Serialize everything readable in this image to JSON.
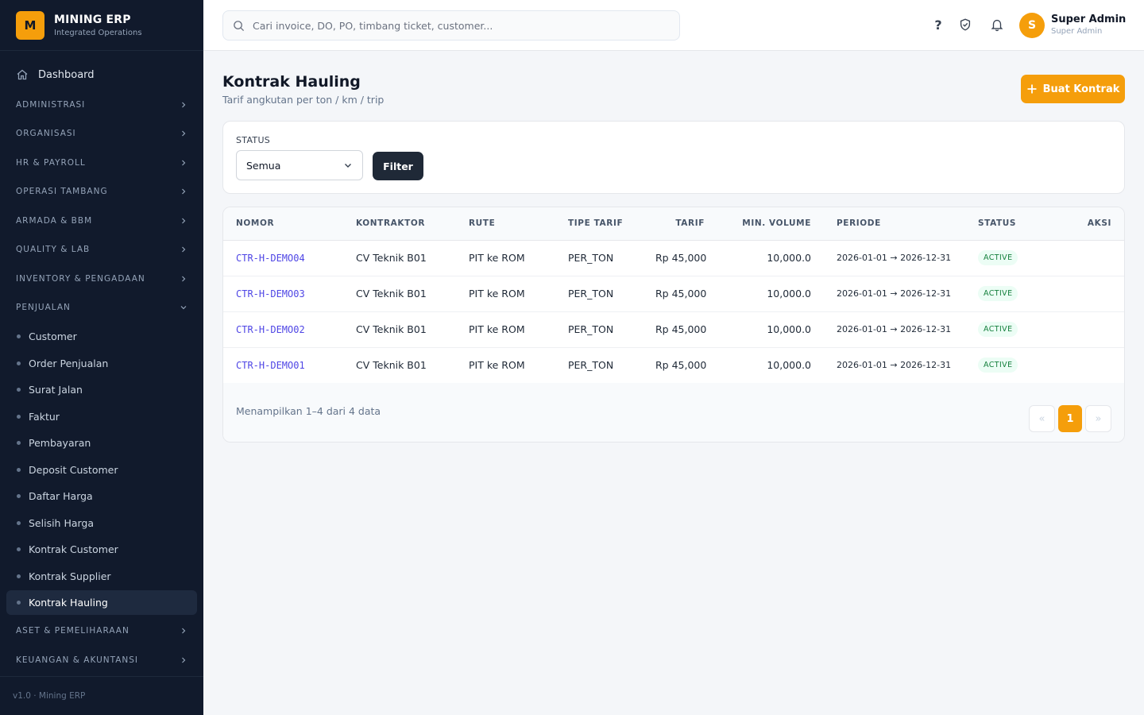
{
  "brand": {
    "logo_letter": "M",
    "name": "MINING ERP",
    "subtitle": "Integrated Operations"
  },
  "sidebar": {
    "dashboard": "Dashboard",
    "sections": [
      {
        "label": "ADMINISTRASI",
        "expanded": false
      },
      {
        "label": "ORGANISASI",
        "expanded": false
      },
      {
        "label": "HR & PAYROLL",
        "expanded": false
      },
      {
        "label": "OPERASI TAMBANG",
        "expanded": false
      },
      {
        "label": "ARMADA & BBM",
        "expanded": false
      },
      {
        "label": "QUALITY & LAB",
        "expanded": false
      },
      {
        "label": "INVENTORY & PENGADAAN",
        "expanded": false
      },
      {
        "label": "PENJUALAN",
        "expanded": true
      },
      {
        "label": "ASET & PEMELIHARAAN",
        "expanded": false
      },
      {
        "label": "KEUANGAN & AKUNTANSI",
        "expanded": false
      }
    ],
    "penjualan_items": [
      "Customer",
      "Order Penjualan",
      "Surat Jalan",
      "Faktur",
      "Pembayaran",
      "Deposit Customer",
      "Daftar Harga",
      "Selisih Harga",
      "Kontrak Customer",
      "Kontrak Supplier",
      "Kontrak Hauling"
    ],
    "active_item": "Kontrak Hauling",
    "footer": "v1.0 · Mining ERP"
  },
  "topbar": {
    "search_placeholder": "Cari invoice, DO, PO, timbang ticket, customer...",
    "help": "?",
    "user": {
      "initial": "S",
      "name": "Super Admin",
      "role": "Super Admin"
    }
  },
  "page": {
    "title": "Kontrak Hauling",
    "subtitle": "Tarif angkutan per ton / km / trip",
    "create_button": "Buat Kontrak"
  },
  "filter": {
    "label": "STATUS",
    "selected": "Semua",
    "button": "Filter"
  },
  "table": {
    "columns": [
      "NOMOR",
      "KONTRAKTOR",
      "RUTE",
      "TIPE TARIF",
      "TARIF",
      "MIN. VOLUME",
      "PERIODE",
      "STATUS",
      "AKSI"
    ],
    "rows": [
      {
        "nomor": "CTR-H-DEMO04",
        "kontraktor": "CV Teknik B01",
        "rute": "PIT ke ROM",
        "tipe": "PER_TON",
        "tarif": "Rp 45,000",
        "min_volume": "10,000.0",
        "periode": "2026-01-01 → 2026-12-31",
        "status": "ACTIVE"
      },
      {
        "nomor": "CTR-H-DEMO03",
        "kontraktor": "CV Teknik B01",
        "rute": "PIT ke ROM",
        "tipe": "PER_TON",
        "tarif": "Rp 45,000",
        "min_volume": "10,000.0",
        "periode": "2026-01-01 → 2026-12-31",
        "status": "ACTIVE"
      },
      {
        "nomor": "CTR-H-DEMO02",
        "kontraktor": "CV Teknik B01",
        "rute": "PIT ke ROM",
        "tipe": "PER_TON",
        "tarif": "Rp 45,000",
        "min_volume": "10,000.0",
        "periode": "2026-01-01 → 2026-12-31",
        "status": "ACTIVE"
      },
      {
        "nomor": "CTR-H-DEMO01",
        "kontraktor": "CV Teknik B01",
        "rute": "PIT ke ROM",
        "tipe": "PER_TON",
        "tarif": "Rp 45,000",
        "min_volume": "10,000.0",
        "periode": "2026-01-01 → 2026-12-31",
        "status": "ACTIVE"
      }
    ]
  },
  "pagination": {
    "info": "Menampilkan 1–4 dari 4 data",
    "prev": "«",
    "current": "1",
    "next": "»"
  },
  "colors": {
    "accent": "#f59e0b",
    "sidebar_bg": "#111a2c",
    "link": "#4f46e5",
    "active_badge": "#15803d"
  }
}
